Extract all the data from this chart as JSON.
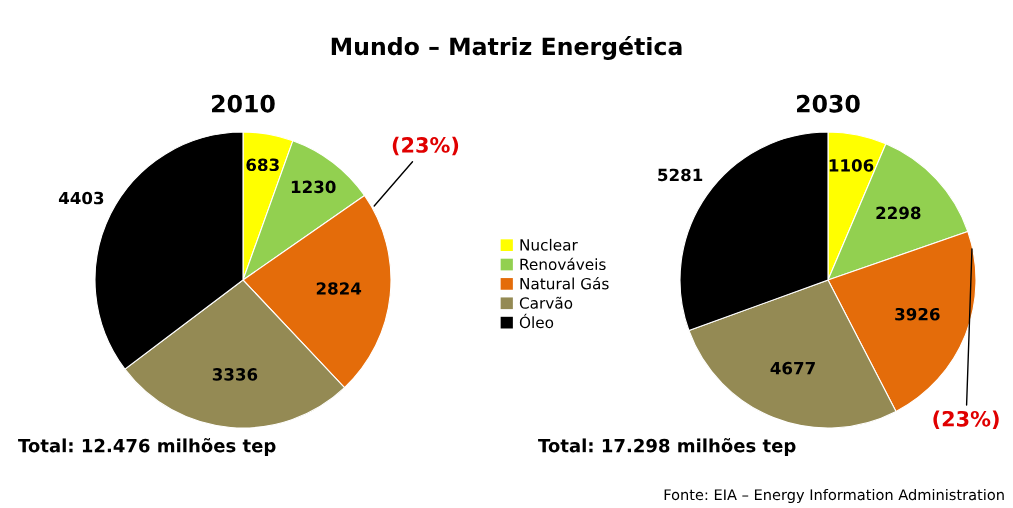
{
  "chart_data": [
    {
      "type": "pie",
      "title": "Mundo – Matriz Energética",
      "subtitle": "2010",
      "categories": [
        "Nuclear",
        "Renováveis",
        "Natural Gás",
        "Carvão",
        "Óleo"
      ],
      "values": [
        683,
        1230,
        2824,
        3336,
        4403
      ],
      "colors": [
        "#ffff00",
        "#92d050",
        "#e46c0a",
        "#948a54",
        "#000000"
      ],
      "data_labels": true,
      "legend": "right",
      "annotations": [
        {
          "text": "(23%)",
          "x": "Natural Gás"
        },
        "Total: 12.476 milhões tep"
      ]
    },
    {
      "type": "pie",
      "subtitle": "2030",
      "categories": [
        null,
        null,
        null,
        null,
        null
      ],
      "values": [
        1106,
        2298,
        3926,
        4677,
        5281
      ],
      "colors": [
        "#ffff00",
        "#92d050",
        "#e46c0a",
        "#948a54",
        "#000000"
      ],
      "data_labels": true,
      "annotations": [
        {
          "text": "(23%)",
          "x": "Natural Gás"
        },
        "Total: 17.298 milhões tep",
        "Fonte: EIA – Energy Information Administration"
      ]
    }
  ]
}
